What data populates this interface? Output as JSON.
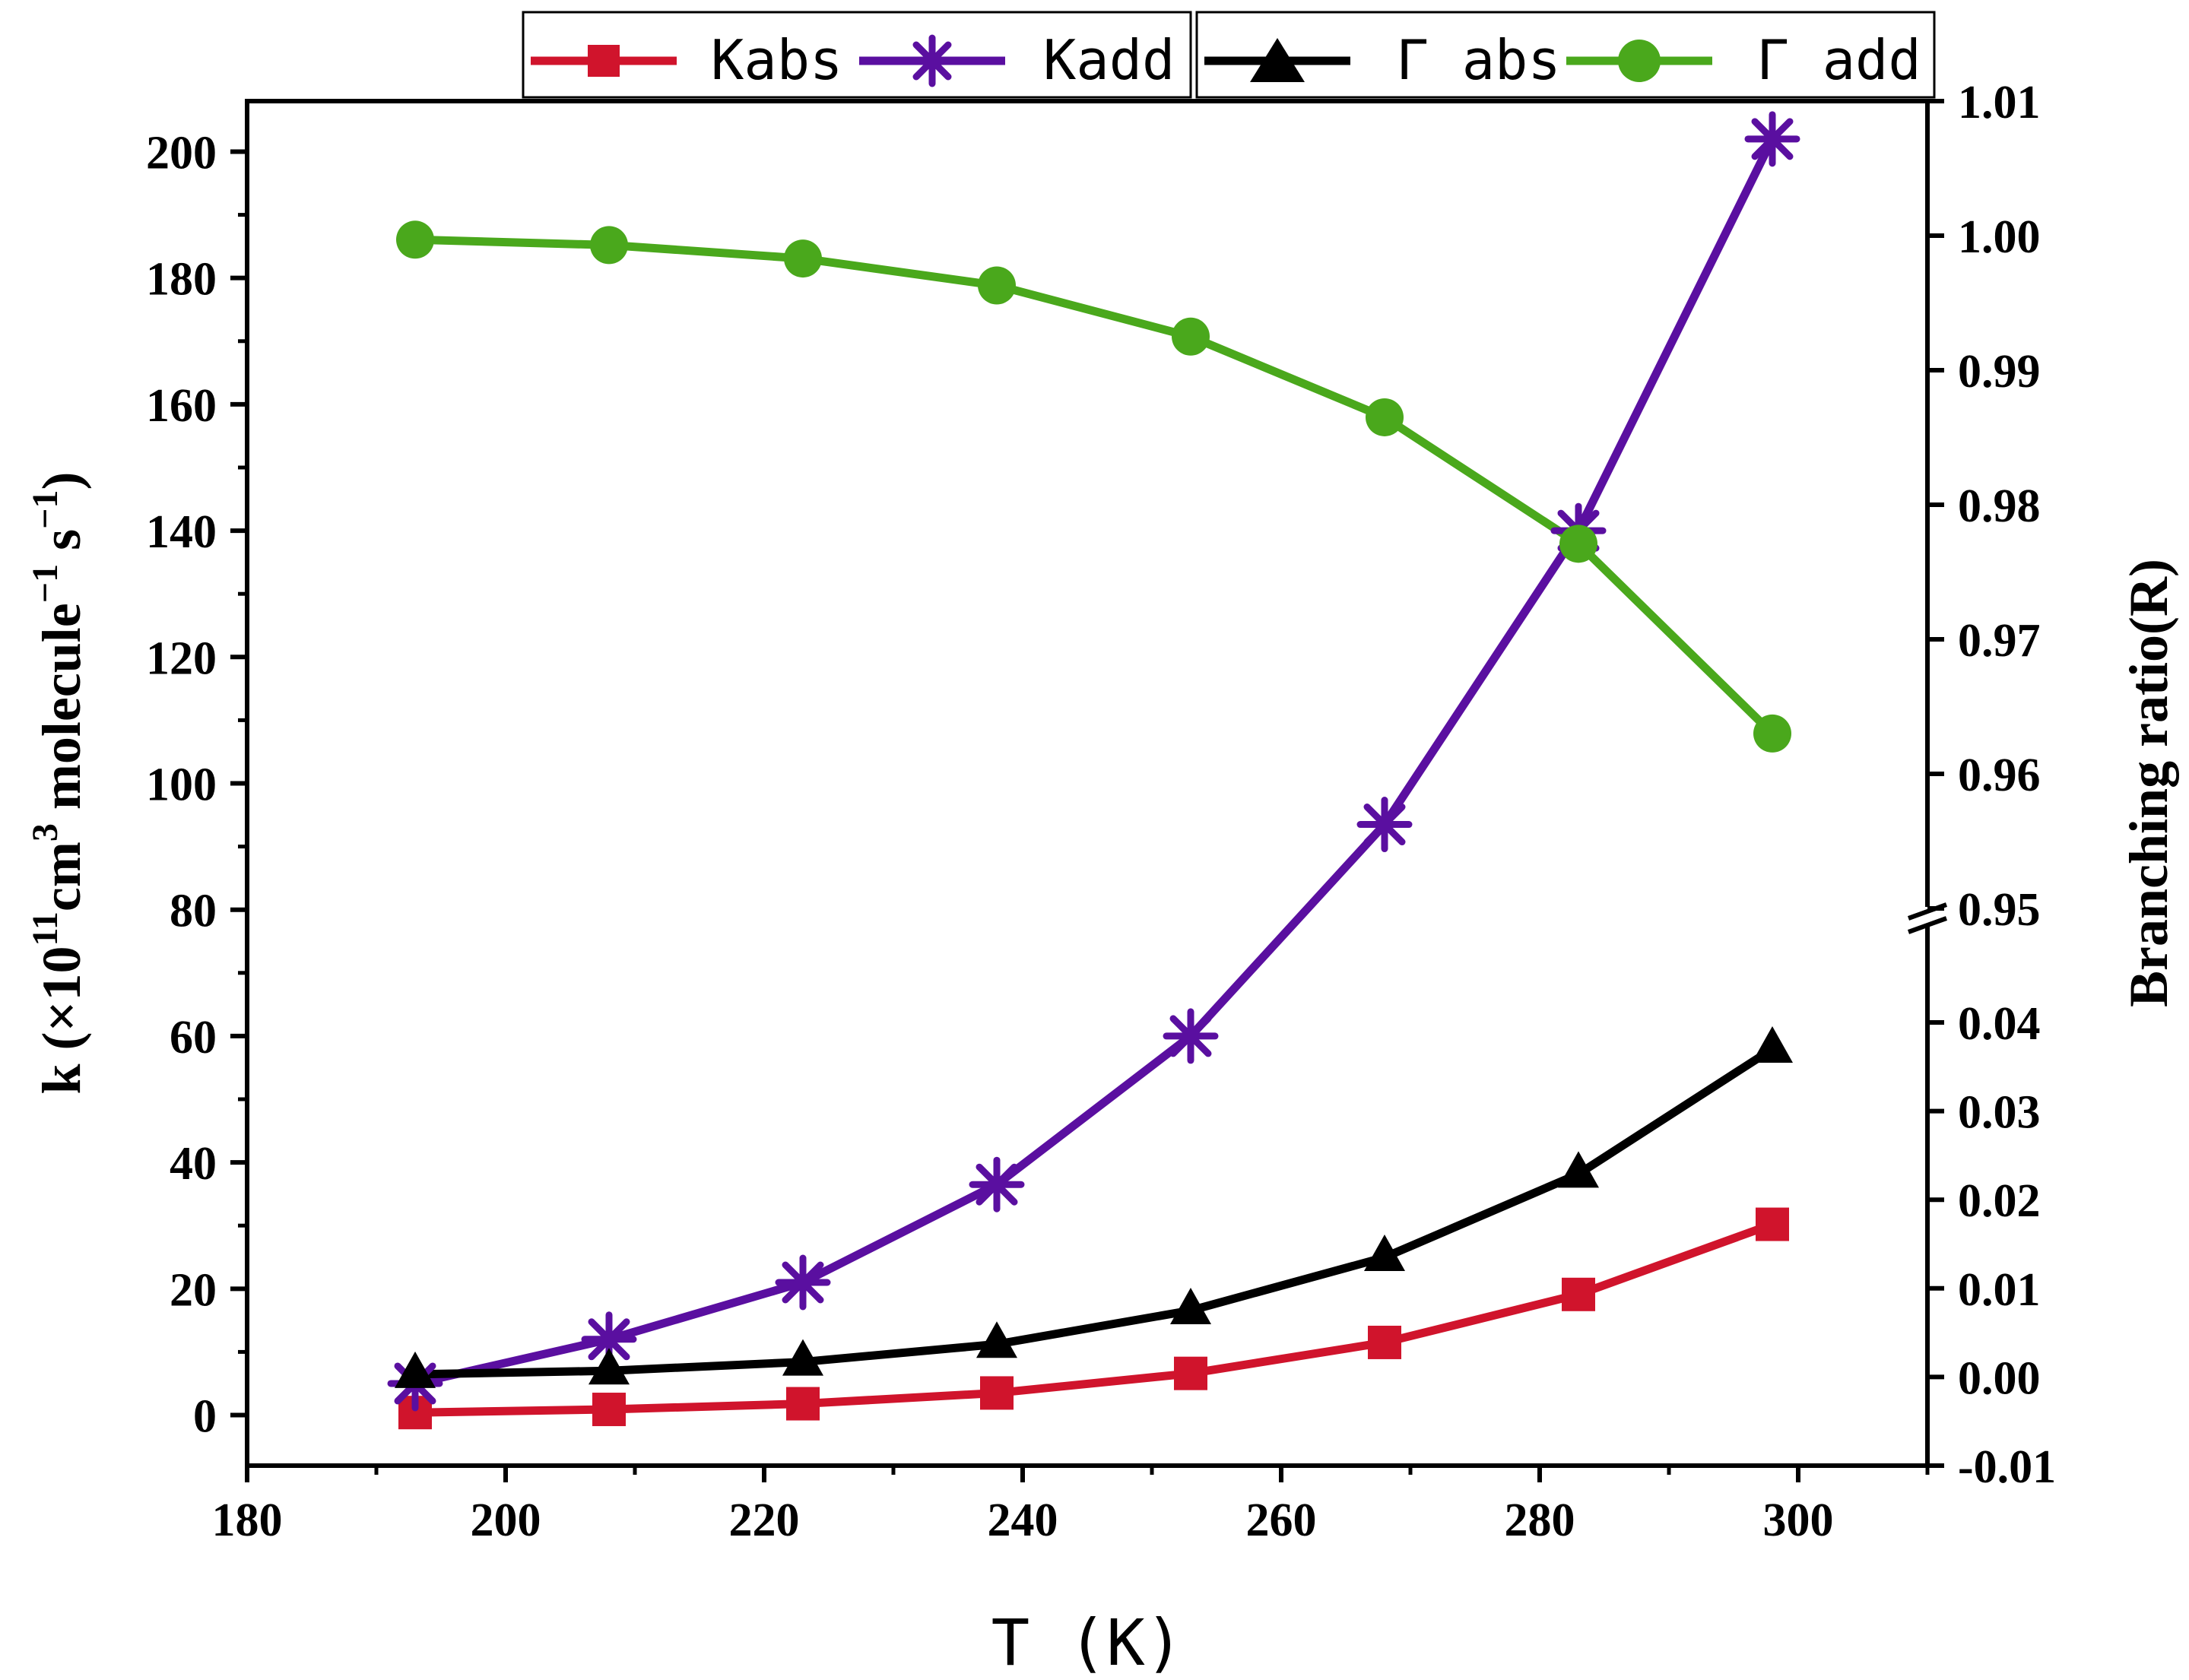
{
  "chart_data": {
    "type": "line",
    "x_axis": {
      "label": "T (K)",
      "range": [
        180,
        310
      ],
      "ticks": [
        180,
        200,
        220,
        240,
        260,
        280,
        300
      ]
    },
    "y_left": {
      "label": "k (×10",
      "label_exp": "11",
      "label_mid": "cm",
      "label_exp2": "3",
      "label_mid2": " molecule",
      "label_exp3": "−1",
      "label_mid3": " s",
      "label_exp4": "−1",
      "label_end": ")",
      "range": [
        -8,
        208
      ],
      "ticks": [
        0,
        20,
        40,
        60,
        80,
        100,
        120,
        140,
        160,
        180,
        200
      ]
    },
    "y_right": {
      "label": "Branching ratio(R)",
      "upper_segment": {
        "range": [
          0.95,
          1.01
        ],
        "ticks": [
          "0.95",
          "0.96",
          "0.97",
          "0.98",
          "0.99",
          "1.00",
          "1.01"
        ]
      },
      "lower_segment": {
        "range": [
          -0.01,
          0.04
        ],
        "ticks": [
          "-0.01",
          "0.00",
          "0.01",
          "0.02",
          "0.03",
          "0.04"
        ]
      }
    },
    "x": [
      193,
      208,
      223,
      238,
      253,
      268,
      283,
      298
    ],
    "series": [
      {
        "name": "Kabs",
        "axis": "left",
        "marker": "square",
        "color": "#d0142c",
        "values": [
          0.4,
          0.9,
          1.8,
          3.5,
          6.6,
          11.5,
          19.1,
          30.2
        ]
      },
      {
        "name": "Kadd",
        "axis": "left",
        "marker": "asterisk",
        "color": "#5a0fa0",
        "values": [
          5.0,
          12.0,
          21.0,
          36.5,
          60.0,
          93.5,
          140.0,
          202.0
        ]
      },
      {
        "name": "Γabs",
        "label": "Γ abs",
        "axis": "right",
        "marker": "triangle",
        "color": "#000000",
        "values": [
          0.0003,
          0.0007,
          0.0017,
          0.0037,
          0.0075,
          0.0135,
          0.0229,
          0.037
        ]
      },
      {
        "name": "Γadd",
        "label": "Γ add",
        "axis": "right",
        "marker": "circle",
        "color": "#4aa81c",
        "values": [
          0.9997,
          0.9993,
          0.9983,
          0.9963,
          0.9925,
          0.9865,
          0.9771,
          0.963
        ]
      }
    ],
    "legend": {
      "placement": "top",
      "boxes": [
        [
          "Kabs",
          "Kadd"
        ],
        [
          "Γ abs",
          "Γ add"
        ]
      ]
    }
  }
}
